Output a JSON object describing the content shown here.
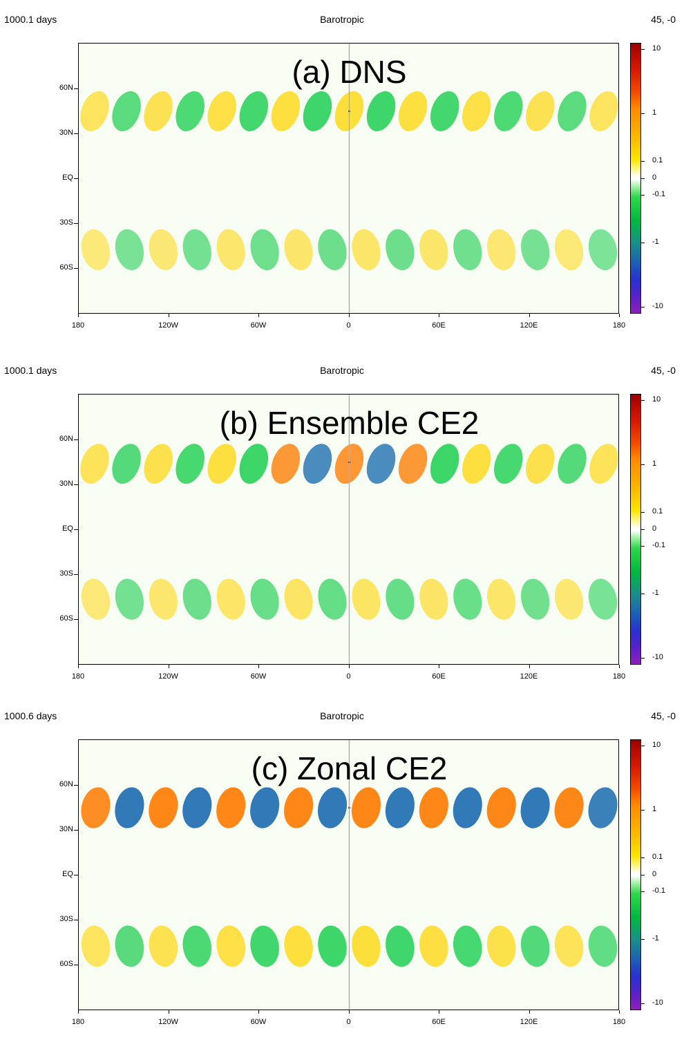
{
  "panels": [
    {
      "time": "1000.1 days",
      "title": "Barotropic",
      "corner": "45, -0",
      "label": "(a) DNS"
    },
    {
      "time": "1000.1 days",
      "title": "Barotropic",
      "corner": "45, -0",
      "label": "(b) Ensemble CE2"
    },
    {
      "time": "1000.6 days",
      "title": "Barotropic",
      "corner": "45, -0",
      "label": "(c) Zonal CE2"
    }
  ],
  "yticks": [
    "60N",
    "30N",
    "EQ",
    "30S",
    "60S"
  ],
  "xticks": [
    "180",
    "120W",
    "60W",
    "0",
    "60E",
    "120E",
    "180"
  ],
  "cbar_ticks": [
    "10",
    "1",
    "0.1",
    "0",
    "-0.1",
    "-1",
    "-10"
  ],
  "colors": {
    "positive": "#ffd400",
    "strong_positive": "#ff7a00",
    "negative": "#00c83c",
    "strong_negative": "#1b6cb0",
    "meridian": "#b0b0b0"
  },
  "chart_data": [
    {
      "type": "heatmap",
      "title": "Barotropic",
      "x_range": [
        -180,
        180
      ],
      "y_range": [
        -90,
        90
      ],
      "colorbar": {
        "scale": "symmetric-log",
        "ticks": [
          10,
          1,
          0.1,
          0,
          -0.1,
          -1,
          -10
        ]
      },
      "wavetrains": [
        {
          "lat": 45,
          "amplitude": 0.55,
          "wavelength_deg": 42,
          "tilt": 0.5
        },
        {
          "lat": -47,
          "amplitude": 0.25,
          "wavelength_deg": 44,
          "tilt": -0.3
        }
      ],
      "source_point": {
        "lon": 0,
        "lat": 45,
        "value": 1.5
      }
    },
    {
      "type": "heatmap",
      "title": "Barotropic",
      "x_range": [
        -180,
        180
      ],
      "y_range": [
        -90,
        90
      ],
      "colorbar": {
        "scale": "symmetric-log",
        "ticks": [
          10,
          1,
          0.1,
          0,
          -0.1,
          -1,
          -10
        ]
      },
      "wavetrains": [
        {
          "lat": 44,
          "amplitude": 0.6,
          "wavelength_deg": 42,
          "tilt": 0.5
        },
        {
          "lat": -46,
          "amplitude": 0.3,
          "wavelength_deg": 44,
          "tilt": -0.3
        }
      ],
      "source_point": {
        "lon": 0,
        "lat": 45,
        "value": 1.5
      }
    },
    {
      "type": "heatmap",
      "title": "Barotropic",
      "x_range": [
        -180,
        180
      ],
      "y_range": [
        -90,
        90
      ],
      "colorbar": {
        "scale": "symmetric-log",
        "ticks": [
          10,
          1,
          0.1,
          0,
          -0.1,
          -1,
          -10
        ]
      },
      "wavetrains": [
        {
          "lat": 45,
          "amplitude": 1.2,
          "wavelength_deg": 45,
          "tilt": 0.3
        },
        {
          "lat": -47,
          "amplitude": 0.55,
          "wavelength_deg": 45,
          "tilt": -0.2
        }
      ],
      "source_point": {
        "lon": 0,
        "lat": 45,
        "value": 1.5
      }
    }
  ]
}
